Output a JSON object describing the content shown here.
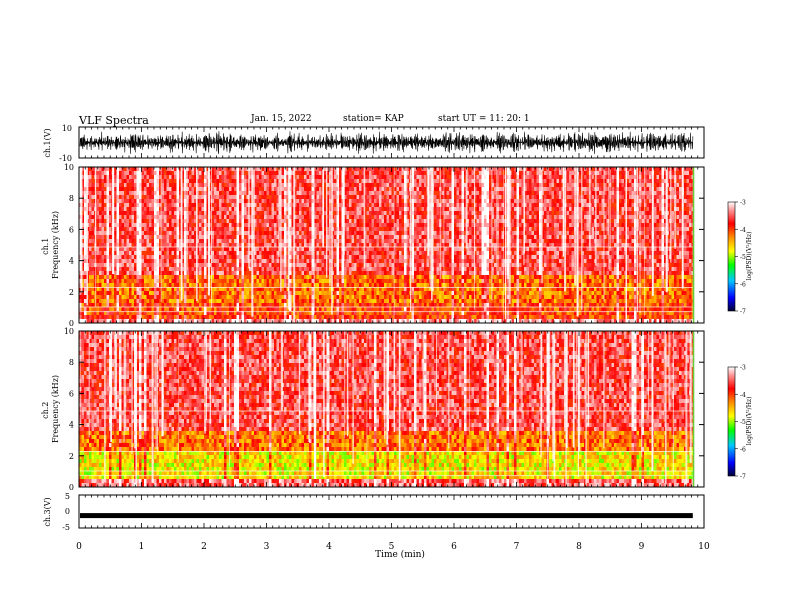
{
  "header": {
    "title": "VLF Spectra",
    "date": "Jan. 15, 2022",
    "station": "station= KAP",
    "start": "start  UT  =   11: 20: 1"
  },
  "chart_data": [
    {
      "type": "line",
      "id": "ch1-waveform",
      "ylabel": "ch.1(V)",
      "ylim": [
        -10,
        10
      ],
      "y_ticks": [
        "10",
        "-10"
      ],
      "xlim": [
        0,
        10
      ],
      "trace_color": "#000000",
      "note_values": "dense noise signal spanning about -8 to +8 V across 0–9.8 min"
    },
    {
      "type": "heatmap",
      "id": "ch1-spectrogram",
      "ylabel": "ch.1\nFrequency (kHz)",
      "ylim": [
        0,
        10
      ],
      "y_ticks": [
        "0",
        "2",
        "4",
        "6",
        "8",
        "10"
      ],
      "xlim": [
        0,
        10
      ],
      "data_end_min": 9.82,
      "colorbar": {
        "label": "log(PSD)(V²/Hz)",
        "range": [
          -7,
          -3
        ],
        "ticks": [
          "-3",
          "-4",
          "-5",
          "-6",
          "-7"
        ]
      },
      "bands_kHz": [
        {
          "from": 0,
          "to": 0.3,
          "level": -3.3
        },
        {
          "from": 0.3,
          "to": 1.2,
          "level": -4.0
        },
        {
          "from": 1.2,
          "to": 3.2,
          "level": -4.2
        },
        {
          "from": 3.2,
          "to": 10,
          "level": -3.6
        }
      ]
    },
    {
      "type": "heatmap",
      "id": "ch2-spectrogram",
      "ylabel": "ch.2\nFrequency (kHz)",
      "ylim": [
        0,
        10
      ],
      "y_ticks": [
        "0",
        "2",
        "4",
        "6",
        "8",
        "10"
      ],
      "xlim": [
        0,
        10
      ],
      "data_end_min": 9.82,
      "colorbar": {
        "label": "log(PSD)(V²/Hz)",
        "range": [
          -7,
          -3
        ],
        "ticks": [
          "-3",
          "-4",
          "-5",
          "-6",
          "-7"
        ]
      },
      "bands_kHz": [
        {
          "from": 0,
          "to": 0.4,
          "level": -3.5
        },
        {
          "from": 0.4,
          "to": 2.2,
          "level": -4.7
        },
        {
          "from": 2.2,
          "to": 3.5,
          "level": -4.2
        },
        {
          "from": 3.5,
          "to": 10,
          "level": -3.6
        }
      ]
    },
    {
      "type": "line",
      "id": "ch3-waveform",
      "ylabel": "ch.3(V)",
      "ylim": [
        -5,
        5
      ],
      "y_ticks": [
        "5",
        "0",
        "-5"
      ],
      "xlim": [
        0,
        10
      ],
      "xlabel": "Time (min)",
      "x_ticks": [
        "0",
        "1",
        "2",
        "3",
        "4",
        "5",
        "6",
        "7",
        "8",
        "9",
        "10"
      ],
      "trace_color": "#000000",
      "signal_range_V": [
        -2,
        -0.5
      ]
    }
  ]
}
